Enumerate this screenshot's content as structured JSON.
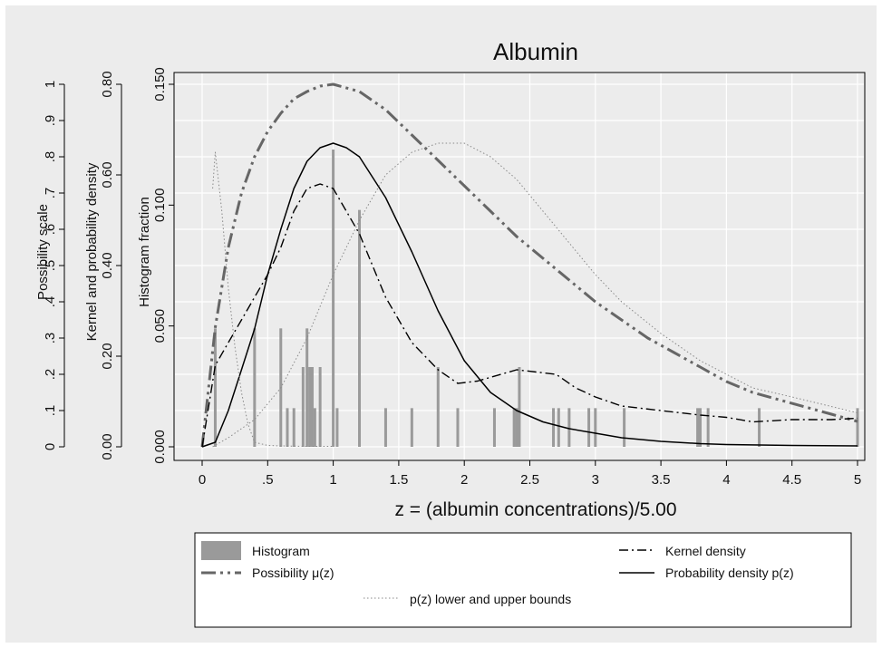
{
  "chart_data": {
    "type": "line",
    "title": "Albumin",
    "xlabel": "z = (albumin concentrations)/5.00",
    "x_ticks": [
      "0",
      ".5",
      "1",
      "1.5",
      "2",
      "2.5",
      "3",
      "3.5",
      "4",
      "4.5",
      "5"
    ],
    "xlim": [
      0,
      5
    ],
    "axes": [
      {
        "id": "possibility",
        "label": "Possibility scale",
        "range": [
          0,
          1
        ],
        "ticks": [
          "0",
          ".1",
          ".2",
          ".3",
          ".4",
          ".5",
          ".6",
          ".7",
          ".8",
          ".9",
          "1"
        ]
      },
      {
        "id": "density",
        "label": "Kernel and probability density",
        "range": [
          0,
          0.8
        ],
        "ticks": [
          "0.00",
          "0.20",
          "0.40",
          "0.60",
          "0.80"
        ]
      },
      {
        "id": "histogram",
        "label": "Histogram fraction",
        "range": [
          0,
          0.15
        ],
        "ticks": [
          "0.000",
          "0.050",
          "0.100",
          "0.150"
        ]
      }
    ],
    "grid": true,
    "legend_position": "bottom",
    "legend": [
      {
        "key": "histogram",
        "label": "Histogram"
      },
      {
        "key": "kernel",
        "label": "Kernel density"
      },
      {
        "key": "possibility",
        "label": "Possibility μ(z)"
      },
      {
        "key": "probability",
        "label": "Probability density p(z)"
      },
      {
        "key": "bounds",
        "label": "p(z) lower and upper bounds"
      }
    ],
    "colors": {
      "histogram": "#9a9a9a",
      "possibility": "#666666",
      "kernel": "#000000",
      "probability": "#000000",
      "bounds": "#888888",
      "grid": "#ffffff",
      "background": "#ececec"
    },
    "histogram": {
      "axis": "histogram",
      "x": [
        0.1,
        0.4,
        0.6,
        0.65,
        0.7,
        0.77,
        0.8,
        0.82,
        0.84,
        0.86,
        0.9,
        1.0,
        1.03,
        1.2,
        1.4,
        1.6,
        1.8,
        1.95,
        2.23,
        2.38,
        2.4,
        2.42,
        2.68,
        2.72,
        2.8,
        2.95,
        3.0,
        3.22,
        3.78,
        3.8,
        3.86,
        4.25,
        5.0
      ],
      "values": [
        0.049,
        0.049,
        0.049,
        0.016,
        0.016,
        0.033,
        0.049,
        0.033,
        0.033,
        0.016,
        0.033,
        0.123,
        0.016,
        0.098,
        0.016,
        0.016,
        0.033,
        0.016,
        0.016,
        0.016,
        0.016,
        0.033,
        0.016,
        0.016,
        0.016,
        0.016,
        0.016,
        0.016,
        0.016,
        0.016,
        0.016,
        0.016,
        0.016
      ]
    },
    "series": [
      {
        "key": "possibility",
        "name": "Possibility μ(z)",
        "axis": "possibility",
        "x": [
          0,
          0.1,
          0.2,
          0.3,
          0.4,
          0.5,
          0.6,
          0.7,
          0.8,
          0.9,
          1.0,
          1.2,
          1.4,
          1.6,
          1.8,
          2.0,
          2.2,
          2.4,
          2.6,
          2.8,
          3.0,
          3.2,
          3.4,
          3.6,
          3.8,
          4.0,
          4.2,
          4.4,
          4.6,
          4.8,
          5.0
        ],
        "y": [
          0,
          0.33,
          0.55,
          0.7,
          0.8,
          0.87,
          0.92,
          0.96,
          0.98,
          0.995,
          1.0,
          0.98,
          0.93,
          0.86,
          0.79,
          0.72,
          0.65,
          0.58,
          0.52,
          0.46,
          0.4,
          0.35,
          0.3,
          0.26,
          0.22,
          0.18,
          0.15,
          0.13,
          0.11,
          0.09,
          0.07
        ]
      },
      {
        "key": "kernel",
        "name": "Kernel density",
        "axis": "density",
        "x": [
          0,
          0.1,
          0.2,
          0.3,
          0.4,
          0.5,
          0.6,
          0.7,
          0.8,
          0.9,
          1.0,
          1.2,
          1.4,
          1.6,
          1.8,
          1.95,
          2.1,
          2.4,
          2.7,
          2.85,
          3.0,
          3.2,
          3.5,
          3.8,
          4.0,
          4.2,
          4.5,
          4.8,
          5.0
        ],
        "y": [
          0,
          0.18,
          0.23,
          0.28,
          0.33,
          0.38,
          0.44,
          0.52,
          0.57,
          0.58,
          0.57,
          0.47,
          0.33,
          0.23,
          0.17,
          0.14,
          0.145,
          0.17,
          0.16,
          0.13,
          0.11,
          0.09,
          0.08,
          0.07,
          0.065,
          0.055,
          0.06,
          0.06,
          0.063
        ]
      },
      {
        "key": "probability",
        "name": "Probability density p(z)",
        "axis": "density",
        "x": [
          0,
          0.1,
          0.2,
          0.3,
          0.4,
          0.5,
          0.6,
          0.7,
          0.8,
          0.9,
          1.0,
          1.1,
          1.2,
          1.4,
          1.6,
          1.8,
          2.0,
          2.2,
          2.4,
          2.6,
          2.8,
          3.0,
          3.2,
          3.5,
          3.8,
          4.0,
          4.5,
          5.0
        ],
        "y": [
          0,
          0.01,
          0.08,
          0.17,
          0.26,
          0.38,
          0.48,
          0.57,
          0.63,
          0.66,
          0.67,
          0.66,
          0.64,
          0.55,
          0.43,
          0.3,
          0.19,
          0.12,
          0.08,
          0.055,
          0.04,
          0.03,
          0.02,
          0.012,
          0.007,
          0.005,
          0.003,
          0.002
        ]
      },
      {
        "key": "bounds",
        "name": "p(z) lower and upper bounds",
        "axis": "density",
        "x": [
          0.08,
          0.1,
          0.15,
          0.2,
          0.25,
          0.3,
          0.35,
          0.4,
          0.5,
          0.6,
          0.8,
          1.0
        ],
        "y": [
          0.57,
          0.65,
          0.52,
          0.35,
          0.22,
          0.12,
          0.05,
          0.01,
          0.003,
          0.002,
          0.001,
          0.001
        ]
      },
      {
        "key": "bounds",
        "name": "p(z) lower and upper bounds",
        "axis": "density",
        "x": [
          0.08,
          0.2,
          0.4,
          0.6,
          0.8,
          1.0,
          1.2,
          1.4,
          1.6,
          1.8,
          2.0,
          2.2,
          2.4,
          2.6,
          2.8,
          3.0,
          3.2,
          3.5,
          3.8,
          4.0,
          4.2,
          4.5,
          5.0
        ],
        "y": [
          0,
          0.02,
          0.06,
          0.13,
          0.24,
          0.38,
          0.5,
          0.6,
          0.65,
          0.67,
          0.67,
          0.64,
          0.59,
          0.52,
          0.45,
          0.38,
          0.32,
          0.25,
          0.19,
          0.16,
          0.13,
          0.11,
          0.075
        ]
      }
    ]
  }
}
